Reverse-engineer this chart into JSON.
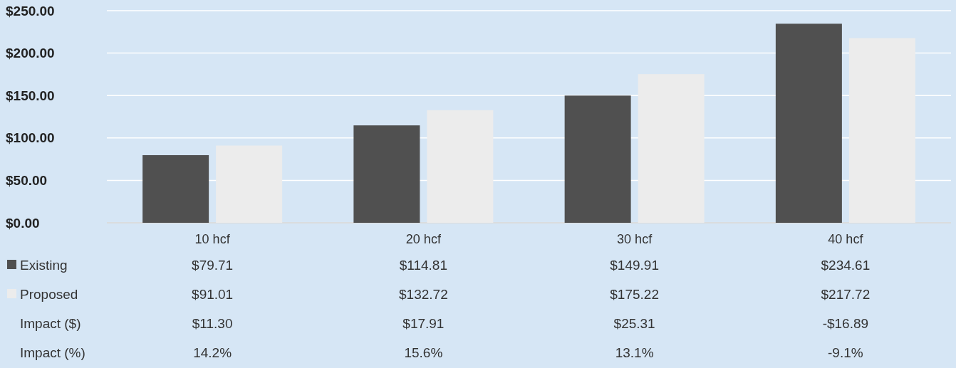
{
  "chart_data": {
    "type": "bar",
    "categories": [
      "10 hcf",
      "20 hcf",
      "30 hcf",
      "40 hcf"
    ],
    "series": [
      {
        "name": "Existing",
        "color": "#505050",
        "values": [
          79.71,
          114.81,
          149.91,
          234.61
        ],
        "value_labels": [
          "$79.71",
          "$114.81",
          "$149.91",
          "$234.61"
        ]
      },
      {
        "name": "Proposed",
        "color": "#ececec",
        "values": [
          91.01,
          132.72,
          175.22,
          217.72
        ],
        "value_labels": [
          "$91.01",
          "$132.72",
          "$175.22",
          "$217.72"
        ]
      }
    ],
    "ylim": [
      0,
      250
    ],
    "yticks": [
      {
        "value": 0,
        "label": "$0.00"
      },
      {
        "value": 50,
        "label": "$50.00"
      },
      {
        "value": 100,
        "label": "$100.00"
      },
      {
        "value": 150,
        "label": "$150.00"
      },
      {
        "value": 200,
        "label": "$200.00"
      },
      {
        "value": 250,
        "label": "$250.00"
      }
    ],
    "grid": "y",
    "legend": "bottom",
    "annotations": [
      "Impact ($)",
      "$11.30",
      "$17.91",
      "$25.31",
      "-$16.89",
      "Impact (%)",
      "14.2%",
      "15.6%",
      "13.1%",
      "-9.1%"
    ]
  }
}
